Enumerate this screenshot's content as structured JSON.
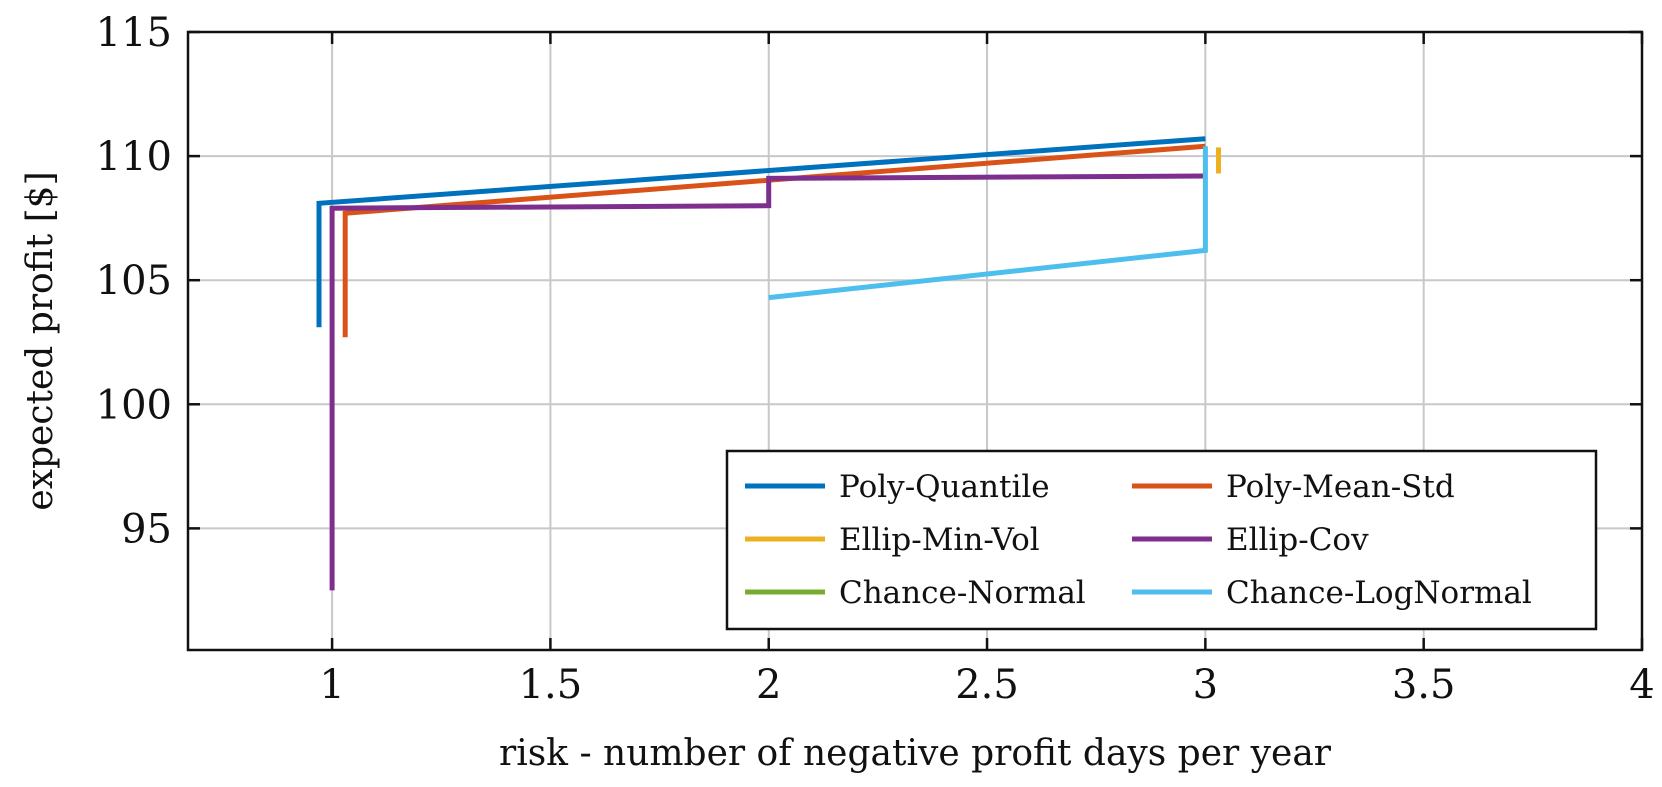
{
  "chart_data": {
    "type": "line",
    "xlabel": "risk - number of negative profit days per year",
    "ylabel": "expected profit [$]",
    "xlim": [
      0.67,
      4
    ],
    "ylim": [
      90.1,
      115
    ],
    "x_ticks": [
      1,
      1.5,
      2,
      2.5,
      3,
      3.5,
      4
    ],
    "x_tick_labels": [
      "1",
      "1.5",
      "2",
      "2.5",
      "3",
      "3.5",
      "4"
    ],
    "y_ticks": [
      95,
      100,
      105,
      110,
      115
    ],
    "y_tick_labels": [
      "95",
      "100",
      "105",
      "110",
      "115"
    ],
    "grid": true,
    "legend_placement": "bottom-right",
    "series": [
      {
        "name": "Poly-Quantile",
        "color": "#0072BD",
        "x": [
          0.97,
          0.97,
          3.0
        ],
        "y": [
          103.1,
          108.1,
          110.7
        ]
      },
      {
        "name": "Poly-Mean-Std",
        "color": "#D95319",
        "x": [
          1.03,
          1.03,
          3.0
        ],
        "y": [
          102.7,
          107.7,
          110.4
        ]
      },
      {
        "name": "Ellip-Min-Vol",
        "color": "#EDB120",
        "x": [
          3.03,
          3.03
        ],
        "y": [
          109.3,
          110.35
        ]
      },
      {
        "name": "Ellip-Cov",
        "color": "#7E2F8E",
        "x": [
          1.0,
          1.0,
          2.0,
          2.0,
          3.0
        ],
        "y": [
          92.5,
          107.9,
          108.0,
          109.1,
          109.2
        ]
      },
      {
        "name": "Chance-Normal",
        "color": "#77AC30",
        "x": [],
        "y": []
      },
      {
        "name": "Chance-LogNormal",
        "color": "#4DBEEE",
        "x": [
          2.0,
          3.0,
          3.0
        ],
        "y": [
          104.3,
          106.2,
          110.4
        ]
      }
    ]
  }
}
